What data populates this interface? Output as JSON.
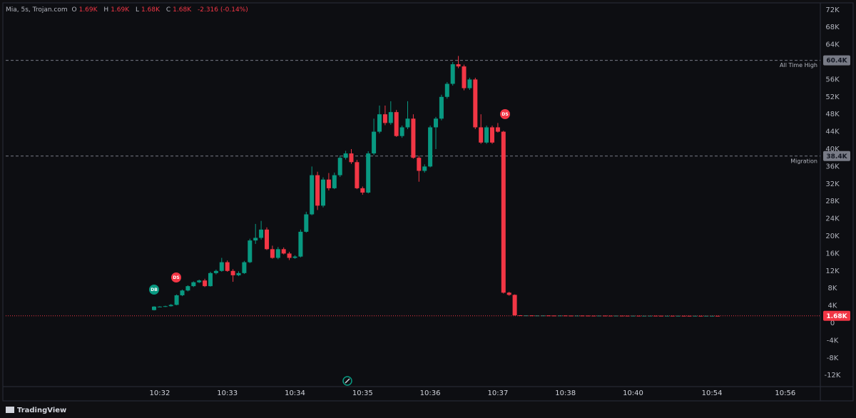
{
  "chart_data": {
    "type": "candlestick",
    "header": {
      "title": "Mia, 5s, Trojan.com",
      "ohlc_labels": [
        {
          "key": "O",
          "value": "1.69K"
        },
        {
          "key": "H",
          "value": "1.69K"
        },
        {
          "key": "L",
          "value": "1.68K"
        },
        {
          "key": "C",
          "value": "1.68K"
        }
      ],
      "change": "-2.316 (-0.14%)"
    },
    "up_color": "#089981",
    "down_color": "#f23645",
    "ylim": [
      -14590,
      73280
    ],
    "yticks": [
      {
        "value": 72000,
        "label": "72K"
      },
      {
        "value": 68000,
        "label": "68K"
      },
      {
        "value": 64000,
        "label": "64K"
      },
      {
        "value": 56000,
        "label": "56K"
      },
      {
        "value": 52000,
        "label": "52K"
      },
      {
        "value": 48000,
        "label": "48K"
      },
      {
        "value": 44000,
        "label": "44K"
      },
      {
        "value": 40000,
        "label": "40K"
      },
      {
        "value": 36000,
        "label": "36K"
      },
      {
        "value": 32000,
        "label": "32K"
      },
      {
        "value": 28000,
        "label": "28K"
      },
      {
        "value": 24000,
        "label": "24K"
      },
      {
        "value": 20000,
        "label": "20K"
      },
      {
        "value": 16000,
        "label": "16K"
      },
      {
        "value": 12000,
        "label": "12K"
      },
      {
        "value": 8000,
        "label": "8K"
      },
      {
        "value": 4000,
        "label": "4K"
      },
      0,
      {
        "value": -4000,
        "label": "-4K"
      },
      {
        "value": -8000,
        "label": "-8K"
      },
      {
        "value": -12000,
        "label": "-12K"
      }
    ],
    "grid": false,
    "levels": [
      {
        "name": "All Time High",
        "value": 60400,
        "label": "60.4K",
        "color": "#787b86"
      },
      {
        "name": "Migration",
        "value": 38400,
        "label": "38.4K",
        "color": "#787b86"
      }
    ],
    "last_price": {
      "value": 1680,
      "label": "1.68K",
      "color": "#f23645"
    },
    "markers": [
      "DB",
      "DS",
      "DS"
    ],
    "categories": [
      null,
      "10:32",
      null,
      null,
      null,
      null,
      null,
      null,
      null,
      null,
      null,
      null,
      null,
      "10:33",
      null,
      null,
      null,
      null,
      null,
      null,
      null,
      null,
      null,
      null,
      null,
      "10:34",
      null,
      null,
      null,
      null,
      null,
      null,
      null,
      null,
      null,
      null,
      null,
      "10:35",
      null,
      null,
      null,
      null,
      null,
      null,
      null,
      null,
      null,
      null,
      null,
      "10:36",
      null,
      null,
      null,
      null,
      null,
      null,
      null,
      null,
      null,
      null,
      null,
      "10:37",
      null,
      null,
      null,
      null,
      null,
      null,
      null,
      null,
      null,
      null,
      null,
      "10:38",
      null,
      null,
      null,
      null,
      null,
      null,
      null,
      null,
      null,
      null,
      null,
      "10:40",
      null,
      null,
      null,
      null,
      null,
      null,
      null,
      null,
      null,
      null,
      null,
      null,
      null,
      "10:54",
      null,
      null,
      null,
      null,
      null,
      null,
      null,
      null,
      null,
      null,
      null,
      null,
      "10:56"
    ],
    "ohlc": [
      [
        3000,
        3900,
        2900,
        3800
      ],
      [
        3800,
        3900,
        3700,
        3800
      ],
      [
        3800,
        4000,
        3700,
        3900
      ],
      [
        3900,
        4400,
        3800,
        4200
      ],
      [
        4200,
        6600,
        4100,
        6400
      ],
      [
        6400,
        7700,
        6200,
        7500
      ],
      [
        7500,
        8700,
        7300,
        8500
      ],
      [
        8500,
        9600,
        8300,
        9400
      ],
      [
        9400,
        10000,
        9200,
        9800
      ],
      [
        9800,
        10200,
        8300,
        8500
      ],
      [
        8500,
        11800,
        8400,
        11500
      ],
      [
        11500,
        12300,
        11200,
        12000
      ],
      [
        12000,
        15000,
        11800,
        14000
      ],
      [
        14000,
        14400,
        11800,
        12000
      ],
      [
        12000,
        12400,
        9500,
        11000
      ],
      [
        11000,
        11900,
        10800,
        11500
      ],
      [
        11500,
        14300,
        11300,
        14000
      ],
      [
        14000,
        19400,
        13800,
        19000
      ],
      [
        19000,
        22800,
        18200,
        19600
      ],
      [
        19600,
        23500,
        19200,
        21500
      ],
      [
        21500,
        22000,
        16800,
        17000
      ],
      [
        17000,
        17800,
        14800,
        15000
      ],
      [
        15000,
        17500,
        14700,
        17000
      ],
      [
        17000,
        17400,
        15800,
        16000
      ],
      [
        16000,
        16400,
        14500,
        15000
      ],
      [
        15000,
        15600,
        14800,
        15300
      ],
      [
        15300,
        21500,
        15100,
        21000
      ],
      [
        21000,
        25600,
        20800,
        25000
      ],
      [
        25000,
        36000,
        24800,
        34000
      ],
      [
        34000,
        34800,
        26000,
        27000
      ],
      [
        27000,
        33500,
        26600,
        33000
      ],
      [
        33000,
        34500,
        30500,
        31000
      ],
      [
        31000,
        34600,
        30800,
        34000
      ],
      [
        34000,
        38500,
        33600,
        38000
      ],
      [
        38000,
        39600,
        37600,
        39000
      ],
      [
        39000,
        40000,
        36600,
        37000
      ],
      [
        37000,
        37500,
        30800,
        31000
      ],
      [
        31000,
        31400,
        29500,
        30000
      ],
      [
        30000,
        39500,
        29800,
        39000
      ],
      [
        39000,
        47000,
        38600,
        44000
      ],
      [
        44000,
        50000,
        43600,
        48000
      ],
      [
        48000,
        50000,
        45500,
        46000
      ],
      [
        46000,
        51000,
        45600,
        48500
      ],
      [
        48500,
        49000,
        42800,
        43000
      ],
      [
        43000,
        45400,
        42600,
        45000
      ],
      [
        45000,
        51000,
        44600,
        47000
      ],
      [
        47000,
        48000,
        37800,
        38000
      ],
      [
        38000,
        38500,
        32500,
        35000
      ],
      [
        35000,
        36500,
        34600,
        36000
      ],
      [
        36000,
        45400,
        35800,
        45000
      ],
      [
        45000,
        47400,
        40000,
        47000
      ],
      [
        47000,
        52500,
        46600,
        52000
      ],
      [
        52000,
        55400,
        51600,
        55000
      ],
      [
        55000,
        60000,
        54600,
        59500
      ],
      [
        59500,
        61400,
        58600,
        59000
      ],
      [
        59000,
        59400,
        53500,
        54000
      ],
      [
        54000,
        56400,
        53600,
        56000
      ],
      [
        56000,
        56400,
        44600,
        45000
      ],
      [
        45000,
        48000,
        41200,
        41500
      ],
      [
        41500,
        45400,
        41200,
        45000
      ],
      [
        45000,
        45400,
        41200,
        41500
      ],
      [
        45000,
        46000,
        43800,
        44000
      ],
      [
        44000,
        44200,
        6800,
        7000
      ],
      [
        7000,
        7200,
        6300,
        6500
      ],
      [
        6500,
        6600,
        1700,
        1800
      ],
      [
        1800,
        1820,
        1740,
        1760
      ],
      [
        1760,
        1780,
        1740,
        1770
      ],
      [
        1770,
        1780,
        1730,
        1740
      ],
      [
        1740,
        1760,
        1730,
        1750
      ],
      [
        1750,
        1770,
        1740,
        1760
      ],
      [
        1760,
        1770,
        1730,
        1740
      ],
      [
        1740,
        1750,
        1720,
        1730
      ],
      [
        1730,
        1760,
        1720,
        1750
      ],
      [
        1750,
        1760,
        1720,
        1730
      ],
      [
        1730,
        1740,
        1710,
        1720
      ],
      [
        1720,
        1750,
        1710,
        1740
      ],
      [
        1740,
        1750,
        1720,
        1730
      ],
      [
        1730,
        1740,
        1710,
        1720
      ],
      [
        1720,
        1730,
        1700,
        1710
      ],
      [
        1710,
        1740,
        1700,
        1730
      ],
      [
        1730,
        1740,
        1710,
        1720
      ],
      [
        1720,
        1730,
        1700,
        1710
      ],
      [
        1710,
        1730,
        1700,
        1720
      ],
      [
        1720,
        1730,
        1700,
        1710
      ],
      [
        1710,
        1720,
        1690,
        1700
      ],
      [
        1700,
        1720,
        1690,
        1710
      ],
      [
        1710,
        1720,
        1690,
        1700
      ],
      [
        1700,
        1710,
        1690,
        1700
      ],
      [
        1700,
        1720,
        1690,
        1710
      ],
      [
        1710,
        1720,
        1690,
        1700
      ],
      [
        1700,
        1710,
        1690,
        1695
      ],
      [
        1695,
        1710,
        1690,
        1700
      ],
      [
        1700,
        1710,
        1685,
        1690
      ],
      [
        1690,
        1700,
        1685,
        1695
      ],
      [
        1695,
        1700,
        1685,
        1690
      ],
      [
        1690,
        1700,
        1680,
        1685
      ],
      [
        1685,
        1700,
        1680,
        1690
      ],
      [
        1690,
        1700,
        1680,
        1685
      ],
      [
        1685,
        1695,
        1680,
        1690
      ],
      [
        1690,
        1695,
        1680,
        1690
      ],
      [
        1690,
        1690,
        1680,
        1680
      ],
      null,
      null,
      null,
      null,
      null,
      null,
      null,
      null,
      null,
      null,
      null,
      null
    ]
  }
}
